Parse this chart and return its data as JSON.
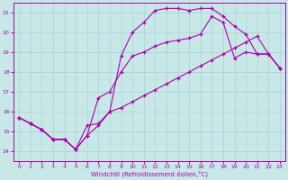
{
  "title": "",
  "xlabel": "Windchill (Refroidissement éolien,°C)",
  "bg_color": "#c8e8e8",
  "grid_color": "#b0d4d4",
  "line_color": "#aa00aa",
  "marker": "+",
  "xlim": [
    -0.5,
    23.5
  ],
  "ylim": [
    13.5,
    21.5
  ],
  "xticks": [
    0,
    1,
    2,
    3,
    4,
    5,
    6,
    7,
    8,
    9,
    10,
    11,
    12,
    13,
    14,
    15,
    16,
    17,
    18,
    19,
    20,
    21,
    22,
    23
  ],
  "yticks": [
    14,
    15,
    16,
    17,
    18,
    19,
    20,
    21
  ],
  "series": [
    {
      "x": [
        0,
        1,
        2,
        3,
        4,
        5,
        6,
        7,
        8,
        9,
        10,
        11,
        12,
        13,
        14,
        15,
        16,
        17,
        18,
        19,
        20,
        21,
        22,
        23
      ],
      "y": [
        15.7,
        15.4,
        15.1,
        14.6,
        14.6,
        14.1,
        15.3,
        15.4,
        16.0,
        16.2,
        16.5,
        16.8,
        17.1,
        17.4,
        17.7,
        18.0,
        18.3,
        18.6,
        18.9,
        19.2,
        19.5,
        19.8,
        18.9,
        18.2
      ]
    },
    {
      "x": [
        0,
        1,
        2,
        3,
        4,
        5,
        6,
        7,
        8,
        9,
        10,
        11,
        12,
        13,
        14,
        15,
        16,
        17,
        18,
        19,
        20,
        21,
        22,
        23
      ],
      "y": [
        15.7,
        15.4,
        15.1,
        14.6,
        14.6,
        14.1,
        14.8,
        15.3,
        16.0,
        18.8,
        20.0,
        20.5,
        21.1,
        21.2,
        21.2,
        21.1,
        21.2,
        21.2,
        20.8,
        20.3,
        19.9,
        18.9,
        18.9,
        18.2
      ]
    },
    {
      "x": [
        0,
        1,
        2,
        3,
        4,
        5,
        6,
        7,
        8,
        9,
        10,
        11,
        12,
        13,
        14,
        15,
        16,
        17,
        18,
        19,
        20,
        21,
        22,
        23
      ],
      "y": [
        15.7,
        15.4,
        15.1,
        14.6,
        14.6,
        14.1,
        14.8,
        16.7,
        17.0,
        18.0,
        18.8,
        19.0,
        19.3,
        19.5,
        19.6,
        19.7,
        19.9,
        20.8,
        20.5,
        18.7,
        19.0,
        18.9,
        18.9,
        18.2
      ]
    }
  ]
}
